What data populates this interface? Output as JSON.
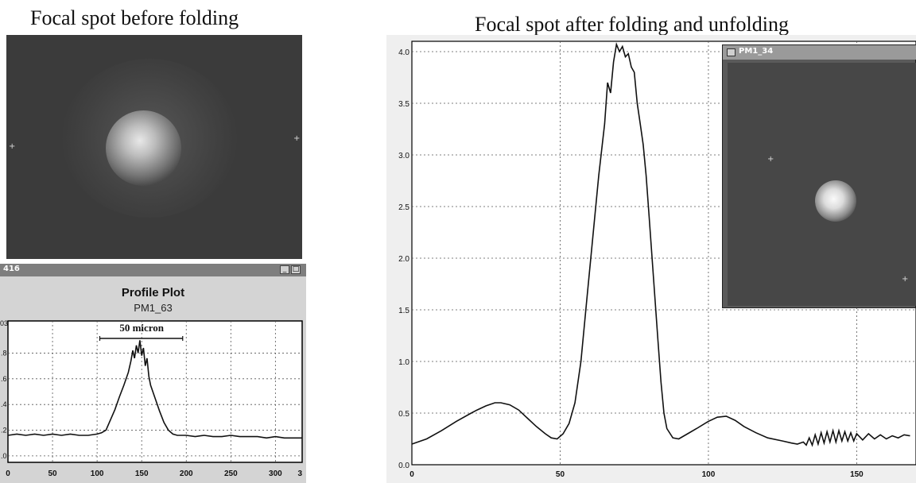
{
  "titles": {
    "before": "Focal spot before folding",
    "after": "Focal spot after folding and unfolding"
  },
  "profile_window": {
    "title": "416",
    "plot_title": "Profile Plot",
    "plot_subtitle": "PM1_63",
    "annotation": "50 micron",
    "exponent_fragment": "03"
  },
  "inset_window": {
    "title": "PM1_34"
  },
  "chart_data": [
    {
      "type": "line",
      "title": "Profile Plot",
      "subtitle": "PM1_63",
      "xlim": [
        0,
        330
      ],
      "ylim": [
        0.95,
        2.05
      ],
      "x_ticks": [
        "0",
        "50",
        "100",
        "150",
        "200",
        "250",
        "300",
        "3"
      ],
      "y_ticks": [
        ".0",
        ".2",
        ".4",
        ".6",
        ".8"
      ],
      "grid": true,
      "annotation": "50 micron",
      "series": [
        {
          "values": [
            [
              0,
              1.16
            ],
            [
              10,
              1.17
            ],
            [
              20,
              1.16
            ],
            [
              30,
              1.17
            ],
            [
              40,
              1.16
            ],
            [
              50,
              1.17
            ],
            [
              60,
              1.16
            ],
            [
              70,
              1.17
            ],
            [
              80,
              1.16
            ],
            [
              90,
              1.16
            ],
            [
              100,
              1.17
            ],
            [
              105,
              1.18
            ],
            [
              110,
              1.2
            ],
            [
              115,
              1.28
            ],
            [
              120,
              1.36
            ],
            [
              125,
              1.46
            ],
            [
              130,
              1.55
            ],
            [
              135,
              1.65
            ],
            [
              138,
              1.74
            ],
            [
              140,
              1.82
            ],
            [
              142,
              1.76
            ],
            [
              144,
              1.86
            ],
            [
              146,
              1.8
            ],
            [
              148,
              1.9
            ],
            [
              150,
              1.78
            ],
            [
              152,
              1.84
            ],
            [
              154,
              1.7
            ],
            [
              156,
              1.76
            ],
            [
              158,
              1.62
            ],
            [
              160,
              1.55
            ],
            [
              165,
              1.45
            ],
            [
              170,
              1.35
            ],
            [
              175,
              1.26
            ],
            [
              180,
              1.2
            ],
            [
              185,
              1.17
            ],
            [
              190,
              1.16
            ],
            [
              200,
              1.16
            ],
            [
              210,
              1.15
            ],
            [
              220,
              1.16
            ],
            [
              230,
              1.15
            ],
            [
              240,
              1.15
            ],
            [
              250,
              1.16
            ],
            [
              260,
              1.15
            ],
            [
              270,
              1.15
            ],
            [
              280,
              1.15
            ],
            [
              290,
              1.14
            ],
            [
              300,
              1.15
            ],
            [
              310,
              1.14
            ],
            [
              320,
              1.14
            ],
            [
              330,
              1.14
            ]
          ]
        }
      ]
    },
    {
      "type": "line",
      "title": "",
      "xlim": [
        0,
        170
      ],
      "ylim": [
        0,
        4.1
      ],
      "x_ticks": [
        0,
        50,
        100,
        150
      ],
      "y_ticks": [
        "0.0",
        "0.5",
        "1.0",
        "1.5",
        "2.0",
        "2.5",
        "3.0",
        "3.5",
        "4.0"
      ],
      "grid": true,
      "series": [
        {
          "values": [
            [
              0,
              0.2
            ],
            [
              5,
              0.25
            ],
            [
              10,
              0.33
            ],
            [
              15,
              0.42
            ],
            [
              20,
              0.5
            ],
            [
              22,
              0.53
            ],
            [
              25,
              0.57
            ],
            [
              28,
              0.6
            ],
            [
              30,
              0.6
            ],
            [
              33,
              0.58
            ],
            [
              36,
              0.53
            ],
            [
              39,
              0.45
            ],
            [
              42,
              0.37
            ],
            [
              45,
              0.3
            ],
            [
              47,
              0.26
            ],
            [
              49,
              0.25
            ],
            [
              51,
              0.3
            ],
            [
              53,
              0.4
            ],
            [
              55,
              0.6
            ],
            [
              57,
              1.0
            ],
            [
              59,
              1.6
            ],
            [
              61,
              2.2
            ],
            [
              63,
              2.8
            ],
            [
              65,
              3.3
            ],
            [
              66,
              3.7
            ],
            [
              67,
              3.6
            ],
            [
              68,
              3.9
            ],
            [
              69,
              4.07
            ],
            [
              70,
              4.0
            ],
            [
              71,
              4.05
            ],
            [
              72,
              3.95
            ],
            [
              73,
              3.98
            ],
            [
              74,
              3.85
            ],
            [
              75,
              3.8
            ],
            [
              76,
              3.5
            ],
            [
              77,
              3.3
            ],
            [
              78,
              3.1
            ],
            [
              79,
              2.8
            ],
            [
              80,
              2.4
            ],
            [
              81,
              2.0
            ],
            [
              82,
              1.6
            ],
            [
              83,
              1.2
            ],
            [
              84,
              0.8
            ],
            [
              85,
              0.5
            ],
            [
              86,
              0.35
            ],
            [
              88,
              0.26
            ],
            [
              90,
              0.25
            ],
            [
              93,
              0.3
            ],
            [
              96,
              0.35
            ],
            [
              100,
              0.42
            ],
            [
              103,
              0.46
            ],
            [
              106,
              0.47
            ],
            [
              109,
              0.43
            ],
            [
              112,
              0.37
            ],
            [
              116,
              0.31
            ],
            [
              120,
              0.26
            ],
            [
              125,
              0.23
            ],
            [
              128,
              0.21
            ],
            [
              130,
              0.2
            ],
            [
              132,
              0.22
            ],
            [
              133,
              0.19
            ],
            [
              134,
              0.26
            ],
            [
              135,
              0.19
            ],
            [
              136,
              0.29
            ],
            [
              137,
              0.2
            ],
            [
              138,
              0.31
            ],
            [
              139,
              0.21
            ],
            [
              140,
              0.32
            ],
            [
              141,
              0.22
            ],
            [
              142,
              0.33
            ],
            [
              143,
              0.22
            ],
            [
              144,
              0.33
            ],
            [
              145,
              0.23
            ],
            [
              146,
              0.32
            ],
            [
              147,
              0.23
            ],
            [
              148,
              0.31
            ],
            [
              149,
              0.23
            ],
            [
              150,
              0.3
            ],
            [
              152,
              0.24
            ],
            [
              154,
              0.3
            ],
            [
              156,
              0.25
            ],
            [
              158,
              0.29
            ],
            [
              160,
              0.25
            ],
            [
              162,
              0.28
            ],
            [
              164,
              0.26
            ],
            [
              166,
              0.29
            ],
            [
              168,
              0.28
            ]
          ]
        }
      ]
    }
  ]
}
